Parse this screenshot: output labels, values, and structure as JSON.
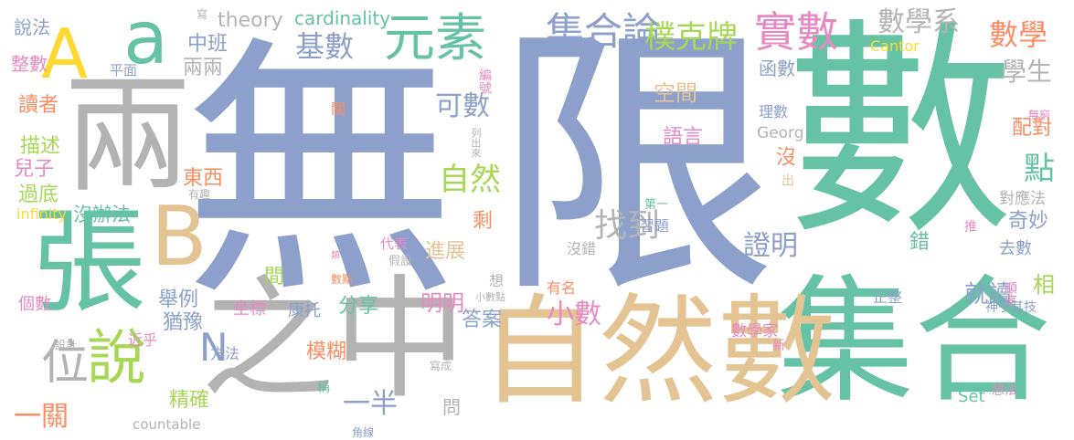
{
  "palette": {
    "green": "#66c2a5",
    "orange": "#fc8d62",
    "blue": "#8da0cb",
    "pink": "#e78ac3",
    "lime": "#a6d854",
    "yellow": "#ffd92f",
    "tan": "#e5c494",
    "gray": "#b3b3b3"
  },
  "words": [
    {
      "text": "無",
      "color": "#8da0cb"
    },
    {
      "text": "限",
      "color": "#8da0cb"
    },
    {
      "text": "數",
      "color": "#66c2a5"
    },
    {
      "text": "集合",
      "color": "#66c2a5"
    },
    {
      "text": "自然數",
      "color": "#e5c494"
    },
    {
      "text": "之中",
      "color": "#b3b3b3"
    },
    {
      "text": "兩",
      "color": "#b3b3b3"
    },
    {
      "text": "張",
      "color": "#66c2a5"
    },
    {
      "text": "A",
      "color": "#ffd92f"
    },
    {
      "text": "a",
      "color": "#66c2a5"
    },
    {
      "text": "B",
      "color": "#e5c494"
    },
    {
      "text": "說",
      "color": "#a6d854"
    },
    {
      "text": "位",
      "color": "#b3b3b3"
    },
    {
      "text": "N",
      "color": "#8da0cb"
    },
    {
      "text": "元素",
      "color": "#66c2a5"
    },
    {
      "text": "實數",
      "color": "#e78ac3"
    },
    {
      "text": "集合論",
      "color": "#8da0cb"
    },
    {
      "text": "樸克牌",
      "color": "#a6d854"
    },
    {
      "text": "數學系",
      "color": "#b3b3b3"
    },
    {
      "text": "數學",
      "color": "#fc8d62"
    },
    {
      "text": "基數",
      "color": "#8da0cb"
    },
    {
      "text": "theory",
      "color": "#b3b3b3"
    },
    {
      "text": "cardinality",
      "color": "#66c2a5"
    },
    {
      "text": "說法",
      "color": "#8da0cb"
    },
    {
      "text": "整數",
      "color": "#e78ac3"
    },
    {
      "text": "寫",
      "color": "#b3b3b3"
    },
    {
      "text": "中班",
      "color": "#8da0cb"
    },
    {
      "text": "兩兩",
      "color": "#b3b3b3"
    },
    {
      "text": "平面",
      "color": "#8da0cb"
    },
    {
      "text": "讀者",
      "color": "#fc8d62"
    },
    {
      "text": "描述",
      "color": "#a6d854"
    },
    {
      "text": "兒子",
      "color": "#e78ac3"
    },
    {
      "text": "過底",
      "color": "#a6d854"
    },
    {
      "text": "infinity",
      "color": "#ffd92f"
    },
    {
      "text": "沒辦法",
      "color": "#66c2a5"
    },
    {
      "text": "個數",
      "color": "#e78ac3"
    },
    {
      "text": "一關",
      "color": "#fc8d62"
    },
    {
      "text": "設計",
      "color": "#b3b3b3"
    },
    {
      "text": "近乎",
      "color": "#e78ac3"
    },
    {
      "text": "countable",
      "color": "#b3b3b3"
    },
    {
      "text": "可數",
      "color": "#8da0cb"
    },
    {
      "text": "自然",
      "color": "#a6d854"
    },
    {
      "text": "編號",
      "color": "#e78ac3"
    },
    {
      "text": "關",
      "color": "#fc8d62"
    },
    {
      "text": "列出來",
      "color": "#b3b3b3"
    },
    {
      "text": "東西",
      "color": "#fc8d62"
    },
    {
      "text": "有趣",
      "color": "#b3b3b3"
    },
    {
      "text": "找到",
      "color": "#b3b3b3"
    },
    {
      "text": "剩",
      "color": "#fc8d62"
    },
    {
      "text": "進展",
      "color": "#e5c494"
    },
    {
      "text": "類",
      "color": "#e78ac3"
    },
    {
      "text": "代表",
      "color": "#e78ac3"
    },
    {
      "text": "假設",
      "color": "#b3b3b3"
    },
    {
      "text": "數點",
      "color": "#fc8d62"
    },
    {
      "text": "想",
      "color": "#b3b3b3"
    },
    {
      "text": "小數點",
      "color": "#b3b3b3"
    },
    {
      "text": "間",
      "color": "#a6d854"
    },
    {
      "text": "舉例",
      "color": "#8da0cb"
    },
    {
      "text": "猶豫",
      "color": "#8da0cb"
    },
    {
      "text": "分享",
      "color": "#66c2a5"
    },
    {
      "text": "明明",
      "color": "#e78ac3"
    },
    {
      "text": "答案",
      "color": "#8da0cb"
    },
    {
      "text": "小數",
      "color": "#e78ac3"
    },
    {
      "text": "坐標",
      "color": "#e78ac3"
    },
    {
      "text": "康托",
      "color": "#8da0cb"
    },
    {
      "text": "方法",
      "color": "#8da0cb"
    },
    {
      "text": "模糊",
      "color": "#fc8d62"
    },
    {
      "text": "精確",
      "color": "#a6d854"
    },
    {
      "text": "稱",
      "color": "#66c2a5"
    },
    {
      "text": "一半",
      "color": "#8da0cb"
    },
    {
      "text": "問",
      "color": "#b3b3b3"
    },
    {
      "text": "寫成",
      "color": "#b3b3b3"
    },
    {
      "text": "角線",
      "color": "#8da0cb"
    },
    {
      "text": "空間",
      "color": "#e5c494"
    },
    {
      "text": "語言",
      "color": "#e78ac3"
    },
    {
      "text": "函數",
      "color": "#8da0cb"
    },
    {
      "text": "理數",
      "color": "#8da0cb"
    },
    {
      "text": "Georg",
      "color": "#b3b3b3"
    },
    {
      "text": "Cantor",
      "color": "#ffd92f"
    },
    {
      "text": "學生",
      "color": "#b3b3b3"
    },
    {
      "text": "無窮",
      "color": "#e78ac3"
    },
    {
      "text": "配對",
      "color": "#fc8d62"
    },
    {
      "text": "點",
      "color": "#66c2a5"
    },
    {
      "text": "沒",
      "color": "#fc8d62"
    },
    {
      "text": "出",
      "color": "#e5c494"
    },
    {
      "text": "對應法",
      "color": "#b3b3b3"
    },
    {
      "text": "奇妙",
      "color": "#8da0cb"
    },
    {
      "text": "證明",
      "color": "#8da0cb"
    },
    {
      "text": "第一",
      "color": "#66c2a5"
    },
    {
      "text": "習題",
      "color": "#8da0cb"
    },
    {
      "text": "錯",
      "color": "#66c2a5"
    },
    {
      "text": "推",
      "color": "#e78ac3"
    },
    {
      "text": "去數",
      "color": "#8da0cb"
    },
    {
      "text": "沒錯",
      "color": "#b3b3b3"
    },
    {
      "text": "相",
      "color": "#a6d854"
    },
    {
      "text": "有名",
      "color": "#fc8d62"
    },
    {
      "text": "就讀",
      "color": "#8da0cb"
    },
    {
      "text": "正整",
      "color": "#8da0cb"
    },
    {
      "text": "順序",
      "color": "#e78ac3"
    },
    {
      "text": "神乎其技",
      "color": "#8da0cb"
    },
    {
      "text": "數學家",
      "color": "#e78ac3"
    },
    {
      "text": "新",
      "color": "#e78ac3"
    },
    {
      "text": "Set",
      "color": "#66c2a5"
    },
    {
      "text": "想法",
      "color": "#e78ac3"
    }
  ]
}
